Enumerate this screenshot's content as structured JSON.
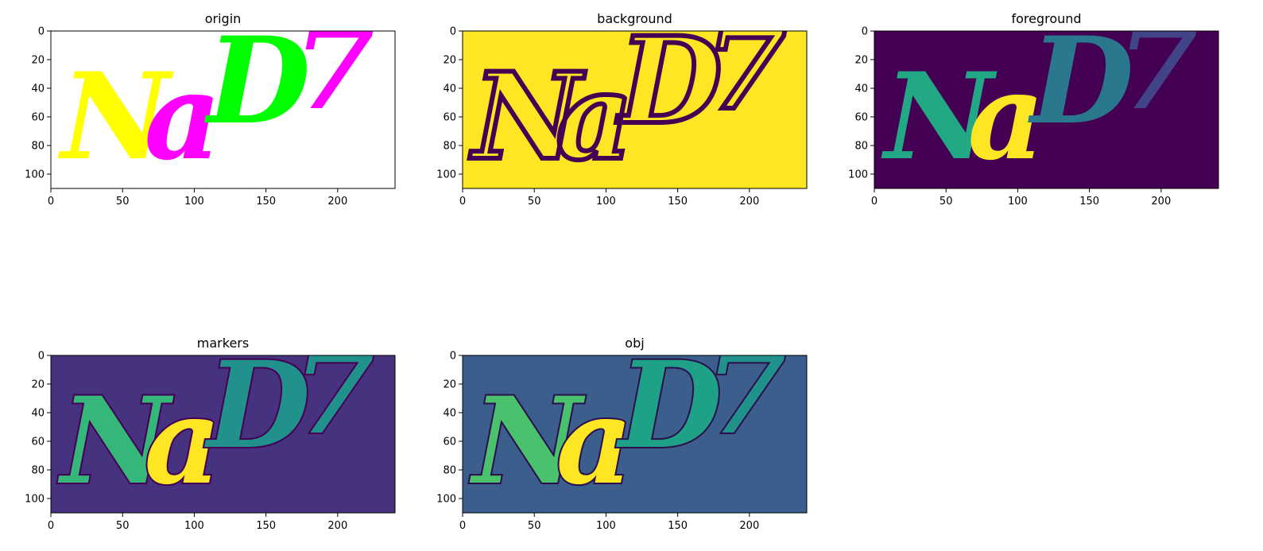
{
  "figure": {
    "background": "#ffffff"
  },
  "chart_data": [
    {
      "type": "heatmap",
      "title": "origin",
      "description_colors": [
        "#ffffff",
        "#ffff00",
        "#ff00ff",
        "#00ff00",
        "#ff0000"
      ],
      "background_color": "#ffffff",
      "xlim": [
        0,
        240
      ],
      "ylim": [
        110,
        0
      ],
      "xticks": [
        0,
        50,
        100,
        150,
        200
      ],
      "yticks": [
        0,
        20,
        40,
        60,
        80,
        100
      ],
      "glyphs": [
        {
          "char": "N",
          "color": "#ffff00",
          "x": 45,
          "y": 60
        },
        {
          "char": "a",
          "color": "#ff00ff",
          "x": 92,
          "y": 60
        },
        {
          "char": "D",
          "color": "#00ff00",
          "x": 145,
          "y": 35
        },
        {
          "char": "7",
          "color": "#ff00ff",
          "x": 198,
          "y": 25
        }
      ]
    },
    {
      "type": "heatmap",
      "title": "background",
      "background_color": "#fde725",
      "outline_color": "#440154",
      "xlim": [
        0,
        240
      ],
      "ylim": [
        110,
        0
      ],
      "xticks": [
        0,
        50,
        100,
        150,
        200
      ],
      "yticks": [
        0,
        20,
        40,
        60,
        80,
        100
      ],
      "glyphs": [
        {
          "char": "N",
          "x": 45,
          "y": 60
        },
        {
          "char": "a",
          "x": 92,
          "y": 60
        },
        {
          "char": "D",
          "x": 145,
          "y": 35
        },
        {
          "char": "7",
          "x": 198,
          "y": 25
        }
      ]
    },
    {
      "type": "heatmap",
      "title": "foreground",
      "background_color": "#440154",
      "xlim": [
        0,
        240
      ],
      "ylim": [
        110,
        0
      ],
      "xticks": [
        0,
        50,
        100,
        150,
        200
      ],
      "yticks": [
        0,
        20,
        40,
        60,
        80,
        100
      ],
      "glyphs": [
        {
          "char": "N",
          "color": "#22a884",
          "x": 45,
          "y": 60
        },
        {
          "char": "a",
          "color": "#fde725",
          "x": 92,
          "y": 60
        },
        {
          "char": "D",
          "color": "#2a788e",
          "x": 145,
          "y": 35
        },
        {
          "char": "7",
          "color": "#414487",
          "x": 198,
          "y": 25
        }
      ]
    },
    {
      "type": "heatmap",
      "title": "markers",
      "background_color": "#46327e",
      "outline_color": "#440154",
      "xlim": [
        0,
        240
      ],
      "ylim": [
        110,
        0
      ],
      "xticks": [
        0,
        50,
        100,
        150,
        200
      ],
      "yticks": [
        0,
        20,
        40,
        60,
        80,
        100
      ],
      "glyphs": [
        {
          "char": "N",
          "color": "#35b779",
          "x": 45,
          "y": 60
        },
        {
          "char": "a",
          "color": "#fde725",
          "x": 92,
          "y": 60
        },
        {
          "char": "D",
          "color": "#21918c",
          "x": 145,
          "y": 35
        },
        {
          "char": "7",
          "color": "#21918c",
          "x": 198,
          "y": 25
        }
      ]
    },
    {
      "type": "heatmap",
      "title": "obj",
      "background_color": "#3b5e8d",
      "outline_color": "#2b0f4b",
      "xlim": [
        0,
        240
      ],
      "ylim": [
        110,
        0
      ],
      "xticks": [
        0,
        50,
        100,
        150,
        200
      ],
      "yticks": [
        0,
        20,
        40,
        60,
        80,
        100
      ],
      "glyphs": [
        {
          "char": "N",
          "color": "#4ac16d",
          "x": 45,
          "y": 60
        },
        {
          "char": "a",
          "color": "#fde725",
          "x": 92,
          "y": 60
        },
        {
          "char": "D",
          "color": "#1fa187",
          "x": 145,
          "y": 35
        },
        {
          "char": "7",
          "color": "#21918c",
          "x": 198,
          "y": 25
        }
      ]
    }
  ]
}
